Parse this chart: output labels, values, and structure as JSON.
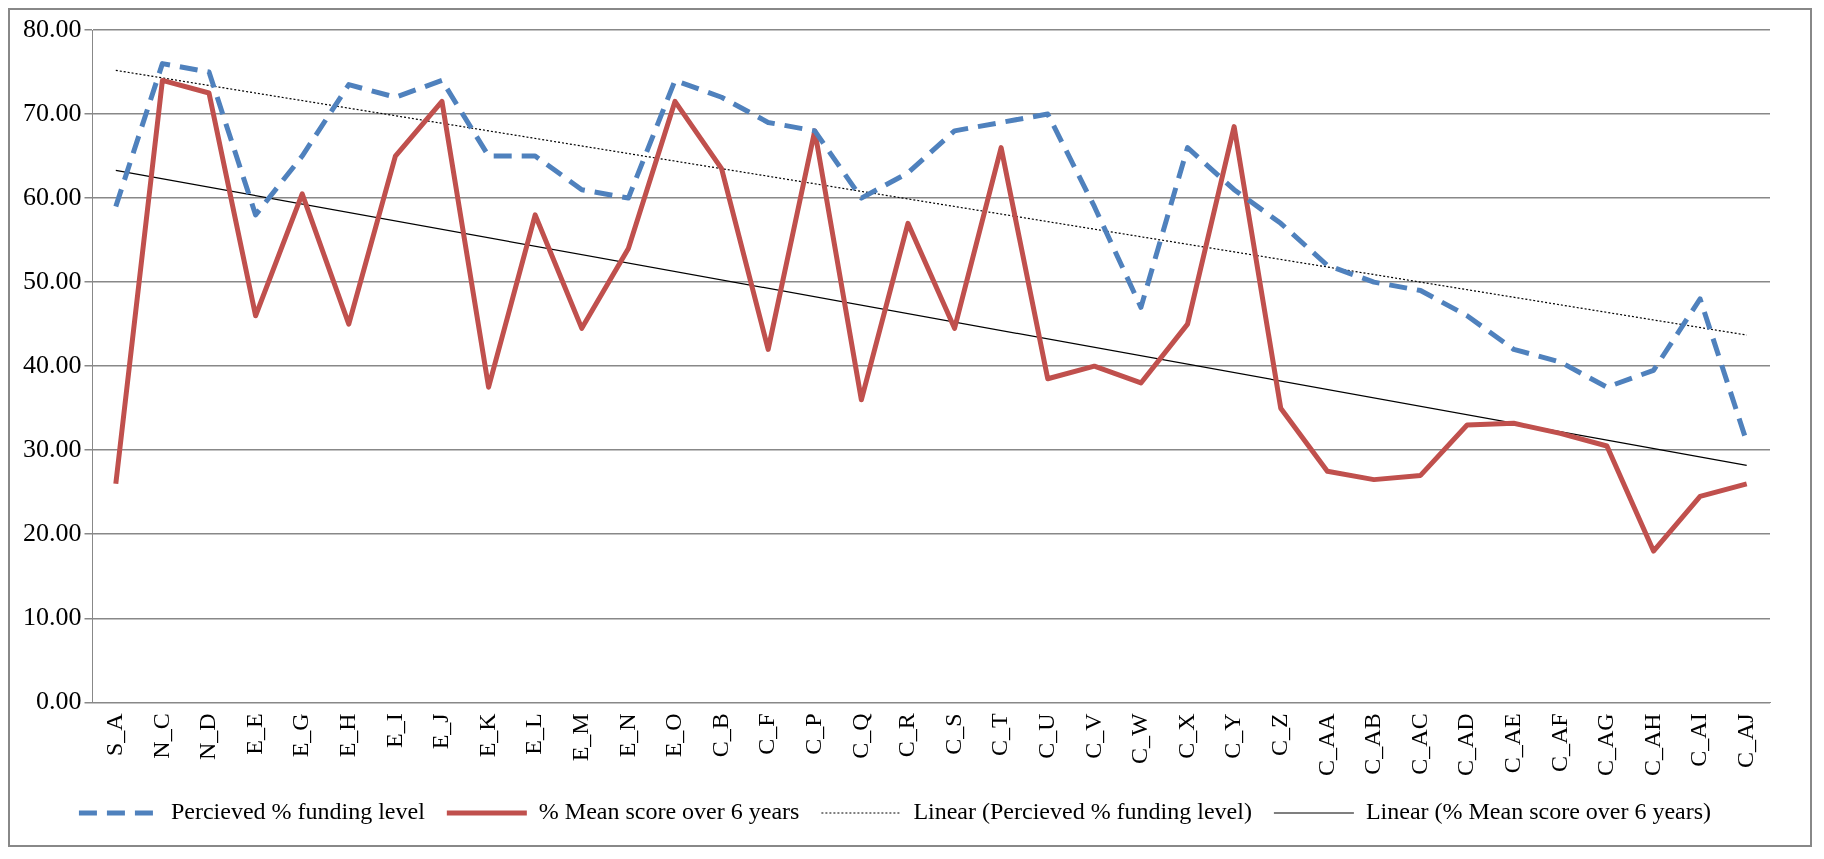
{
  "chart_data": {
    "type": "line",
    "categories": [
      "S_A",
      "N_C",
      "N_D",
      "E_E",
      "E_G",
      "E_H",
      "E_I",
      "E_J",
      "E_K",
      "E_L",
      "E_M",
      "E_N",
      "E_O",
      "C_B",
      "C_F",
      "C_P",
      "C_Q",
      "C_R",
      "C_S",
      "C_T",
      "C_U",
      "C_V",
      "C_W",
      "C_X",
      "C_Y",
      "C_Z",
      "C_AA",
      "C_AB",
      "C_AC",
      "C_AD",
      "C_AE",
      "C_AF",
      "C_AG",
      "C_AH",
      "C_AI",
      "C_AJ"
    ],
    "series": [
      {
        "name": "Percieved % funding level",
        "color": "#4f81bd",
        "line_style": "dashed",
        "values": [
          59,
          76,
          75,
          58,
          65,
          73.5,
          72,
          74,
          65,
          65,
          61,
          60,
          74,
          72,
          69,
          68,
          60,
          63,
          68,
          69,
          70,
          59,
          47,
          66,
          61,
          57,
          52,
          50,
          49,
          46,
          42,
          40.5,
          37.5,
          39.5,
          48,
          31
        ]
      },
      {
        "name": "% Mean score over 6 years",
        "color": "#c0504d",
        "line_style": "solid",
        "values": [
          26,
          74,
          72.5,
          46,
          60.5,
          45,
          65,
          71.5,
          37.5,
          58,
          44.5,
          54,
          71.5,
          63.5,
          42,
          68,
          36,
          57,
          44.5,
          66,
          38.5,
          40,
          38,
          45,
          68.5,
          35,
          27.5,
          26.5,
          27,
          33,
          33.2,
          32,
          30.5,
          18,
          24.5,
          26
        ]
      },
      {
        "name": "Linear (Percieved % funding level)",
        "type": "line",
        "color": "#000000",
        "line_style": "dotted",
        "x": [
          "S_A",
          "C_AJ"
        ],
        "values": [
          75.2,
          43.7
        ]
      },
      {
        "name": "Linear (% Mean score over 6 years)",
        "type": "line",
        "color": "#000000",
        "line_style": "solid",
        "x": [
          "S_A",
          "C_AJ"
        ],
        "values": [
          63.3,
          28.2
        ]
      }
    ],
    "ylim": [
      0,
      80
    ],
    "yticks": [
      {
        "value": 0,
        "label": "0.00"
      },
      {
        "value": 10,
        "label": "10.00"
      },
      {
        "value": 20,
        "label": "20.00"
      },
      {
        "value": 30,
        "label": "30.00"
      },
      {
        "value": 40,
        "label": "40.00"
      },
      {
        "value": 50,
        "label": "50.00"
      },
      {
        "value": 60,
        "label": "60.00"
      },
      {
        "value": 70,
        "label": "70.00"
      },
      {
        "value": 80,
        "label": "80.00"
      }
    ],
    "grid": "y",
    "legend": "bottom",
    "marker": "none"
  }
}
